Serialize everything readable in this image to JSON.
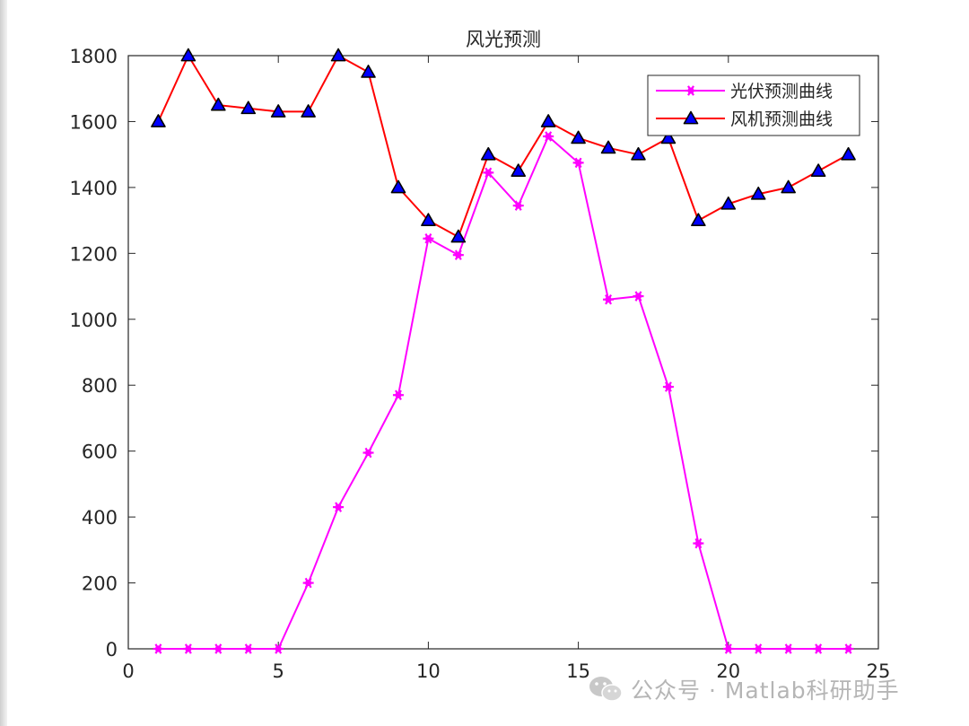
{
  "window": {
    "accent": "#ffffff"
  },
  "watermark": {
    "text": "公众号 · Matlab科研助手",
    "icon": "wechat-icon"
  },
  "chart_data": {
    "type": "line",
    "title": "风光预测",
    "xlabel": "",
    "ylabel": "",
    "xlim": [
      0,
      25
    ],
    "ylim": [
      0,
      1800
    ],
    "xticks": [
      0,
      5,
      10,
      15,
      20,
      25
    ],
    "yticks": [
      0,
      200,
      400,
      600,
      800,
      1000,
      1200,
      1400,
      1600,
      1800
    ],
    "grid": false,
    "legend_position": "top-right",
    "x": [
      1,
      2,
      3,
      4,
      5,
      6,
      7,
      8,
      9,
      10,
      11,
      12,
      13,
      14,
      15,
      16,
      17,
      18,
      19,
      20,
      21,
      22,
      23,
      24
    ],
    "series": [
      {
        "name": "光伏预测曲线",
        "color": "#ff00ff",
        "marker": "hexagram",
        "values": [
          0,
          0,
          0,
          0,
          0,
          200,
          430,
          595,
          770,
          1245,
          1195,
          1445,
          1345,
          1555,
          1475,
          1060,
          1070,
          795,
          320,
          0,
          0,
          0,
          0,
          0
        ]
      },
      {
        "name": "风机预测曲线",
        "color": "#ff0000",
        "marker_color": "#0000ff",
        "marker": "triangle",
        "values": [
          1600,
          1800,
          1650,
          1640,
          1630,
          1630,
          1800,
          1750,
          1400,
          1300,
          1250,
          1500,
          1450,
          1600,
          1550,
          1520,
          1500,
          1550,
          1300,
          1350,
          1380,
          1400,
          1450,
          1500
        ]
      }
    ]
  }
}
